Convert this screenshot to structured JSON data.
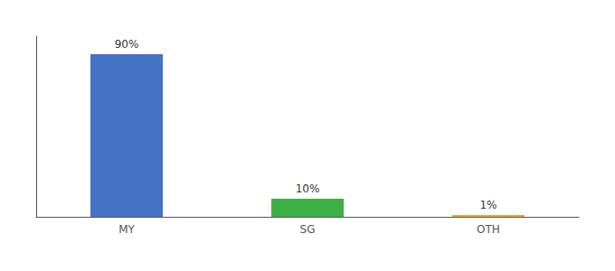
{
  "chart_data": {
    "type": "bar",
    "categories": [
      "MY",
      "SG",
      "OTH"
    ],
    "values": [
      90,
      10,
      1
    ],
    "value_labels": [
      "90%",
      "10%",
      "1%"
    ],
    "colors": [
      "#4472c4",
      "#3cb043",
      "#f5a623"
    ],
    "data_labels": true,
    "ylim": [
      0,
      100
    ],
    "grid": false,
    "tick_labels": "x"
  }
}
